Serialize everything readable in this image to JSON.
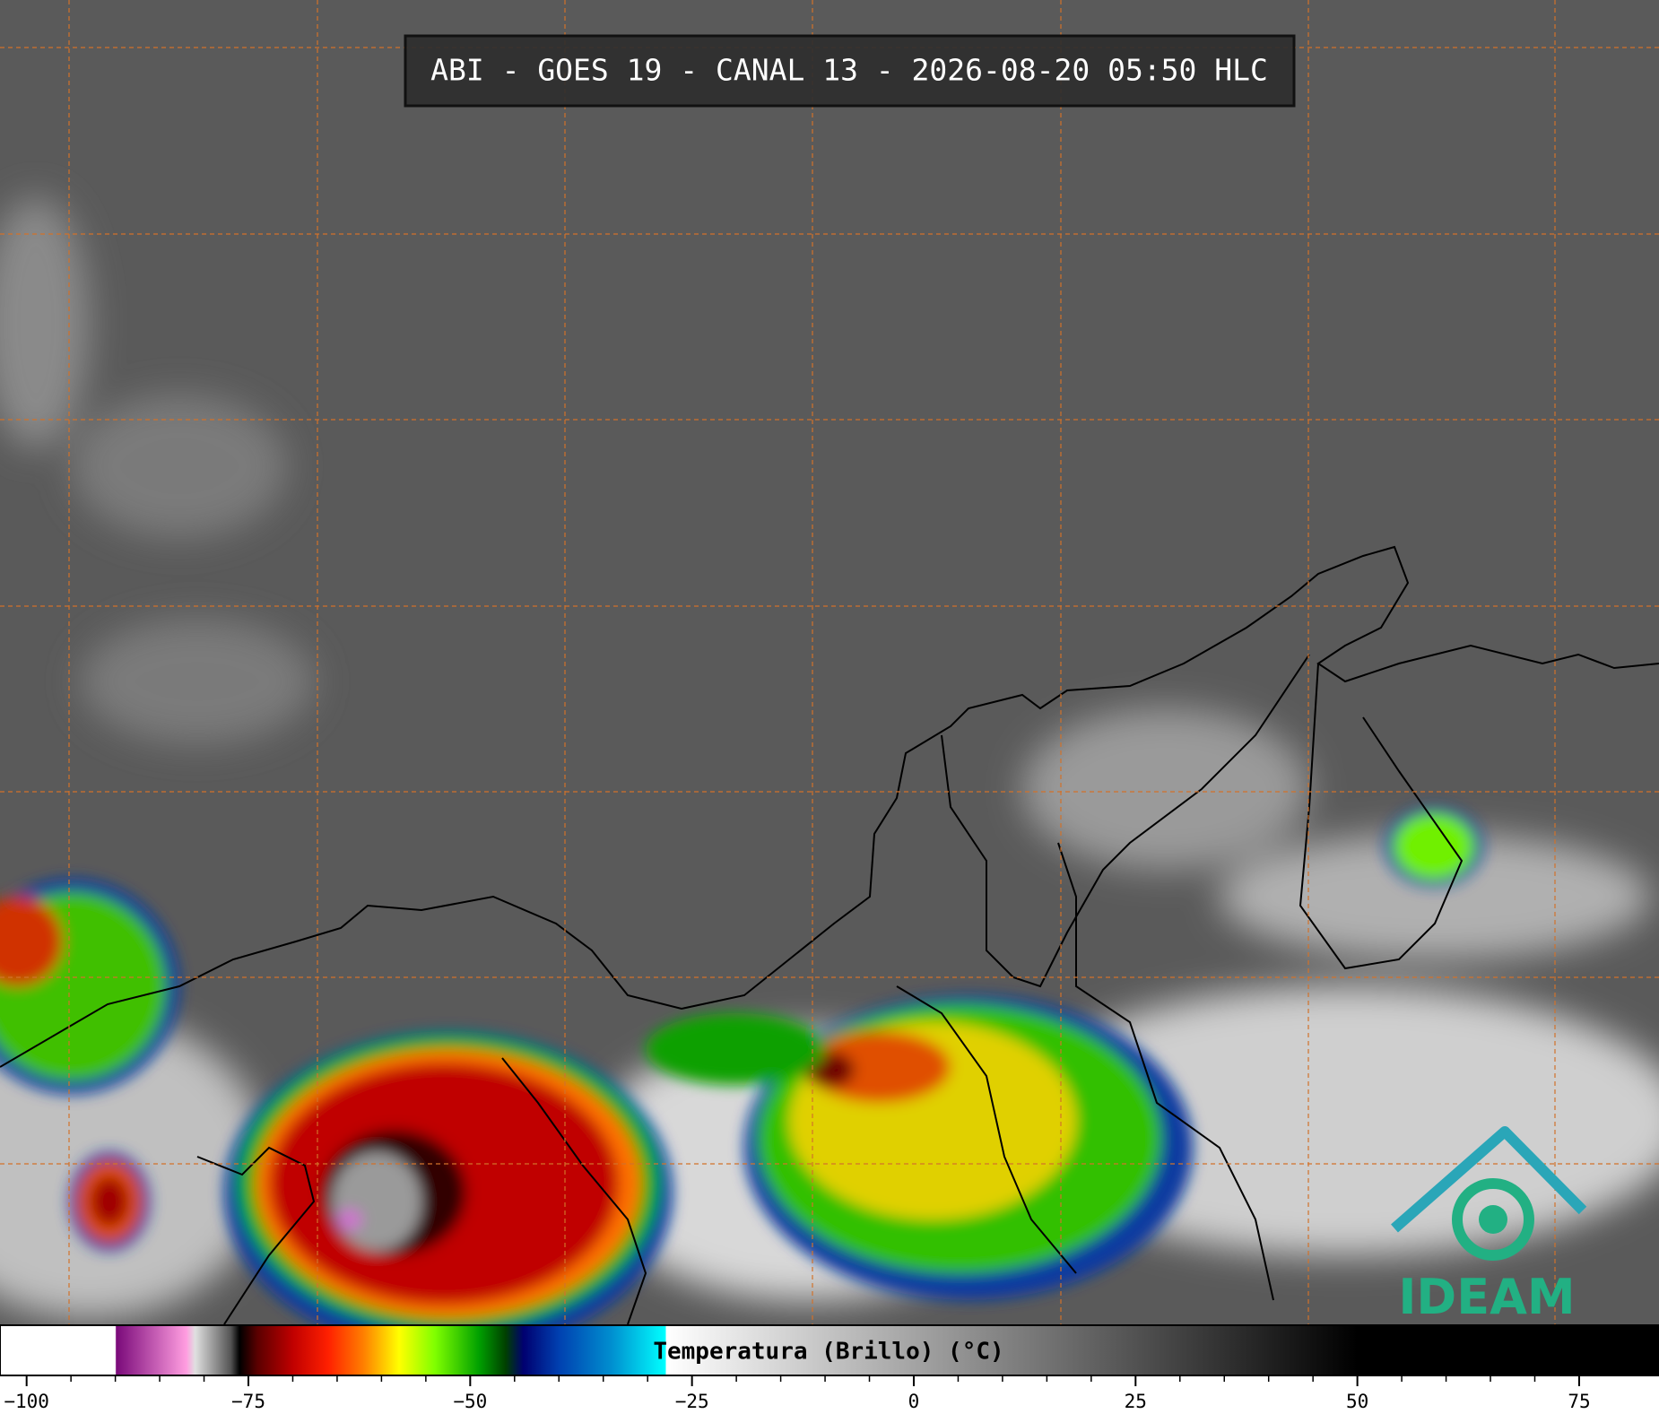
{
  "header": {
    "title": "ABI - GOES 19 - CANAL 13 - 2026-08-20 05:50 HLC"
  },
  "colorbar": {
    "label": "Temperatura (Brillo) (°C)",
    "lim": [
      -103,
      84
    ],
    "ticks": [
      {
        "value": -100,
        "label": "−100"
      },
      {
        "value": -75,
        "label": "−75"
      },
      {
        "value": -50,
        "label": "−50"
      },
      {
        "value": -25,
        "label": "−25"
      },
      0,
      25,
      50,
      75
    ],
    "stops": [
      {
        "value": -103,
        "color": "#ffffff"
      },
      {
        "value": -90,
        "color": "#ffffff"
      },
      {
        "value": -89.9,
        "color": "#7a0a7a"
      },
      {
        "value": -82,
        "color": "#ff9de0"
      },
      {
        "value": -81,
        "color": "#e0e0e0"
      },
      {
        "value": -77,
        "color": "#555555"
      },
      {
        "value": -76,
        "color": "#000000"
      },
      {
        "value": -74,
        "color": "#5a0000"
      },
      {
        "value": -70,
        "color": "#c00000"
      },
      {
        "value": -66,
        "color": "#ff2000"
      },
      {
        "value": -62,
        "color": "#ff8000"
      },
      {
        "value": -58,
        "color": "#ffff00"
      },
      {
        "value": -54,
        "color": "#80ff00"
      },
      {
        "value": -49,
        "color": "#00a000"
      },
      {
        "value": -46,
        "color": "#004000"
      },
      {
        "value": -44,
        "color": "#000070"
      },
      {
        "value": -40,
        "color": "#0040b0"
      },
      {
        "value": -34,
        "color": "#0090d0"
      },
      {
        "value": -28,
        "color": "#00ffff"
      },
      {
        "value": -27.9,
        "color": "#ffffff"
      },
      {
        "value": 50,
        "color": "#000000"
      },
      {
        "value": 84,
        "color": "#000000"
      }
    ]
  },
  "logo": {
    "text": "IDEAM"
  }
}
